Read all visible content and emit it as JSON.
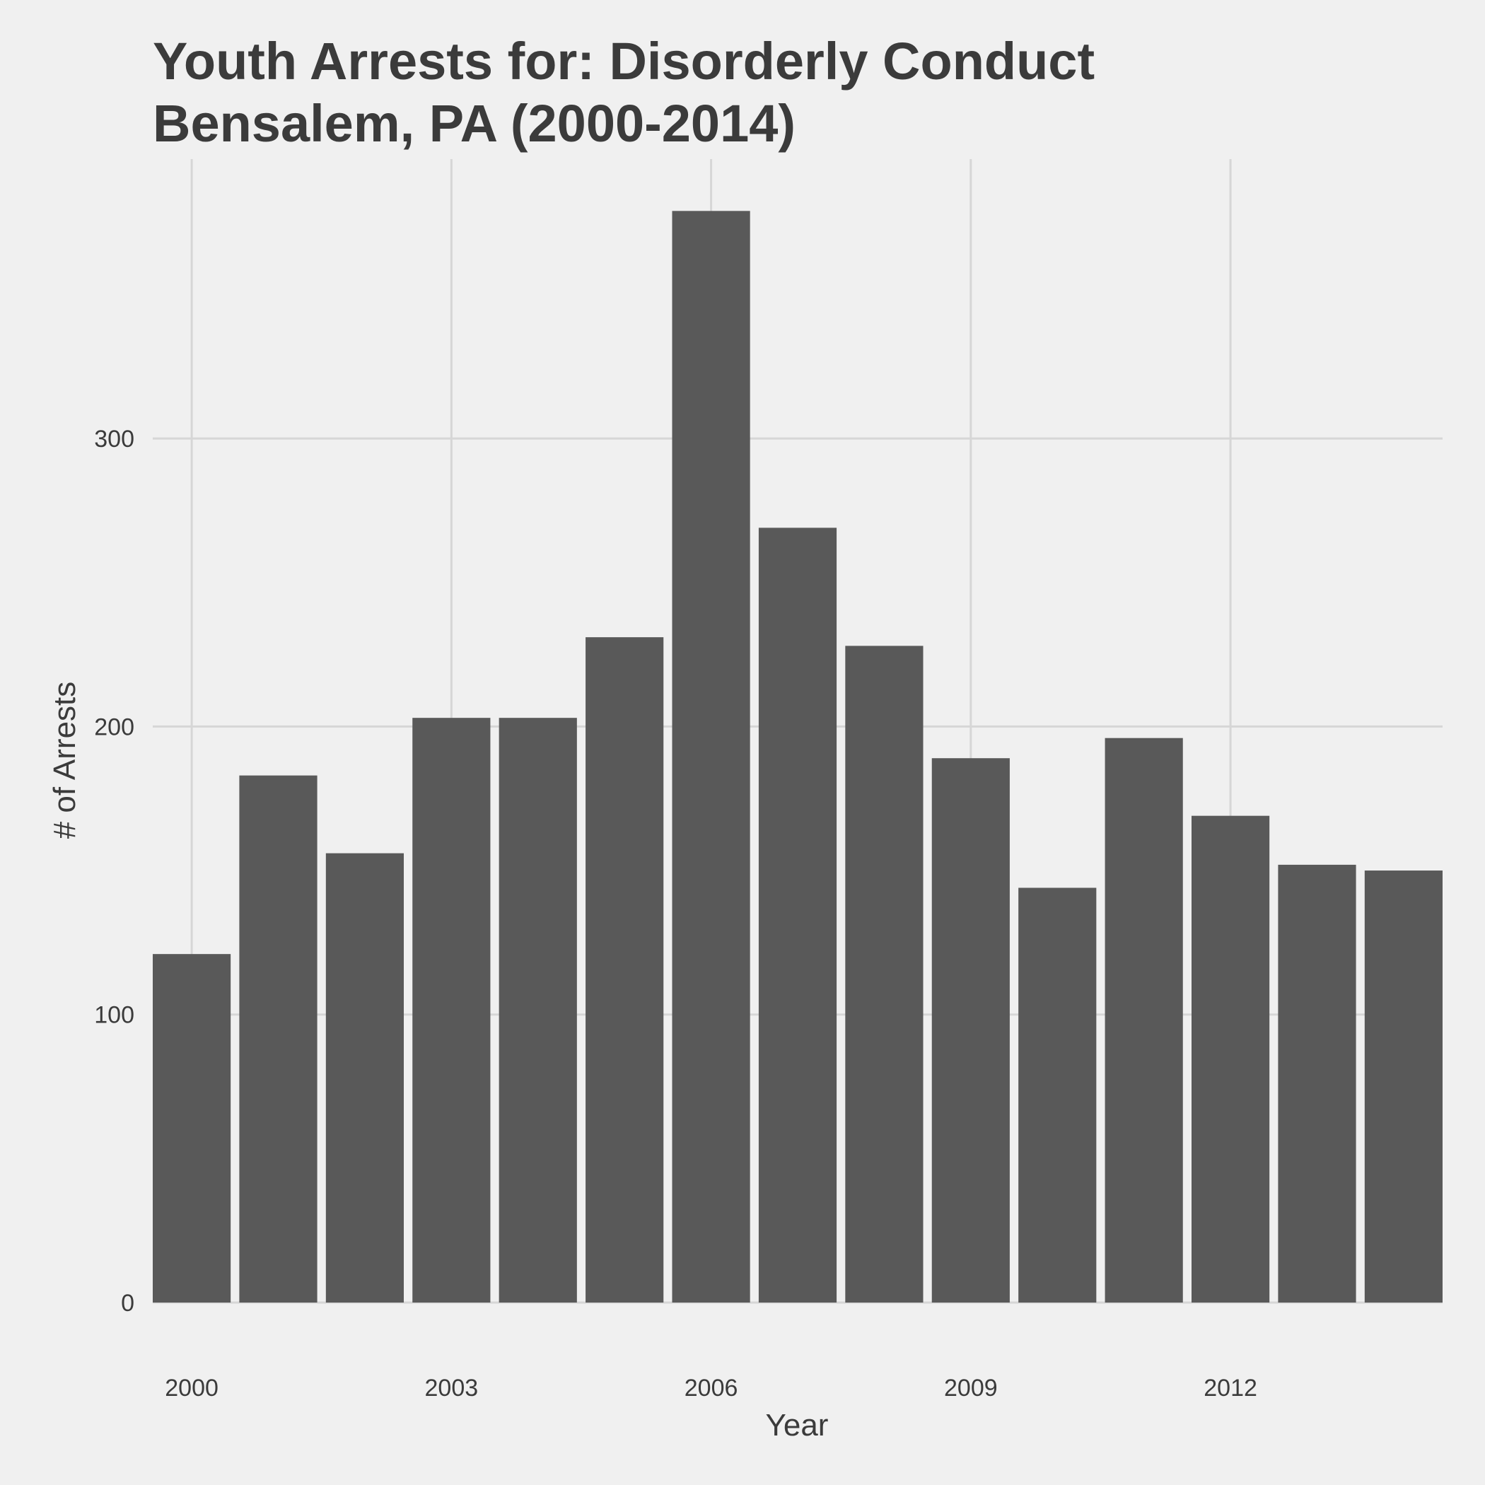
{
  "chart_data": {
    "type": "bar",
    "title": "Youth Arrests for: Disorderly Conduct",
    "subtitle": "Bensalem, PA (2000-2014)",
    "xlabel": "Year",
    "ylabel": "# of Arrests",
    "categories": [
      2000,
      2001,
      2002,
      2003,
      2004,
      2005,
      2006,
      2007,
      2008,
      2009,
      2010,
      2011,
      2012,
      2013,
      2014
    ],
    "values": [
      121,
      183,
      156,
      203,
      203,
      231,
      379,
      269,
      228,
      189,
      144,
      196,
      169,
      152,
      150
    ],
    "x_ticks": [
      2000,
      2003,
      2006,
      2009,
      2012
    ],
    "y_ticks": [
      0,
      100,
      200,
      300
    ],
    "xlim": [
      1999.55,
      2014.45
    ],
    "ylim": [
      0,
      397
    ],
    "grid": true,
    "bar_color": "#595959",
    "grid_color": "#d6d6d6",
    "background_color": "#f0f0f0",
    "text_color": "#3b3b3b"
  }
}
